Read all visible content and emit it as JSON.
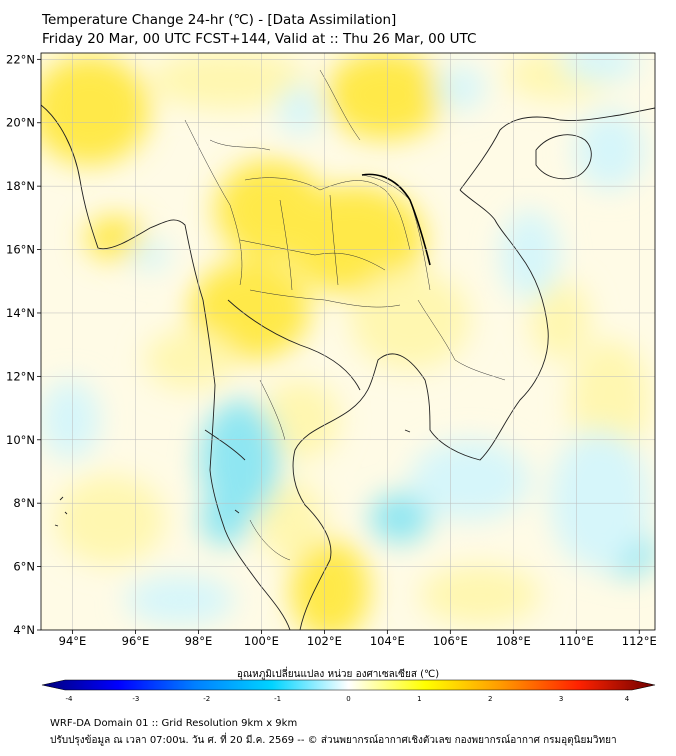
{
  "title": {
    "line1": "Temperature Change 24-hr (℃) - [Data Assimilation]",
    "line2": "Friday 20 Mar, 00 UTC FCST+144, Valid at :: Thu 26 Mar, 00 UTC"
  },
  "map": {
    "lon_range": [
      93,
      112.5
    ],
    "lat_range": [
      4,
      22.2
    ],
    "lon_ticks": [
      "94°E",
      "96°E",
      "98°E",
      "100°E",
      "102°E",
      "104°E",
      "106°E",
      "108°E",
      "110°E",
      "112°E"
    ],
    "lat_ticks": [
      "22°N",
      "20°N",
      "18°N",
      "16°N",
      "14°N",
      "12°N",
      "10°N",
      "8°N",
      "6°N",
      "4°N"
    ],
    "grid": true,
    "colors": {
      "warm": "#ffe94a",
      "light_warm": "#fff7b0",
      "cool": "#8fe6f2",
      "light_cool": "#d6f6fa",
      "land_line": "#222222"
    }
  },
  "colorbar": {
    "title": "อุณหภูมิเปลี่ยนแปลง หน่วย องศาเซลเซียส (℃)",
    "min": -4,
    "max": 4,
    "ticks": [
      "-4",
      "-3",
      "-2",
      "-1",
      "0",
      "1",
      "2",
      "3",
      "4"
    ],
    "stops": [
      "#00007a",
      "#0000ff",
      "#0080ff",
      "#00d4ff",
      "#ffffff",
      "#ffff00",
      "#ff9900",
      "#ff2200",
      "#6e0000"
    ]
  },
  "footer": {
    "line1": "WRF-DA Domain 01 :: Grid Resolution 9km x 9km",
    "line2": "ปรับปรุงข้อมูล ณ เวลา 07:00น. วัน ศ. ที่ 20 มี.ค. 2569 -- © ส่วนพยากรณ์อากาศเชิงตัวเลข กองพยากรณ์อากาศ กรมอุตุนิยมวิทยา"
  }
}
